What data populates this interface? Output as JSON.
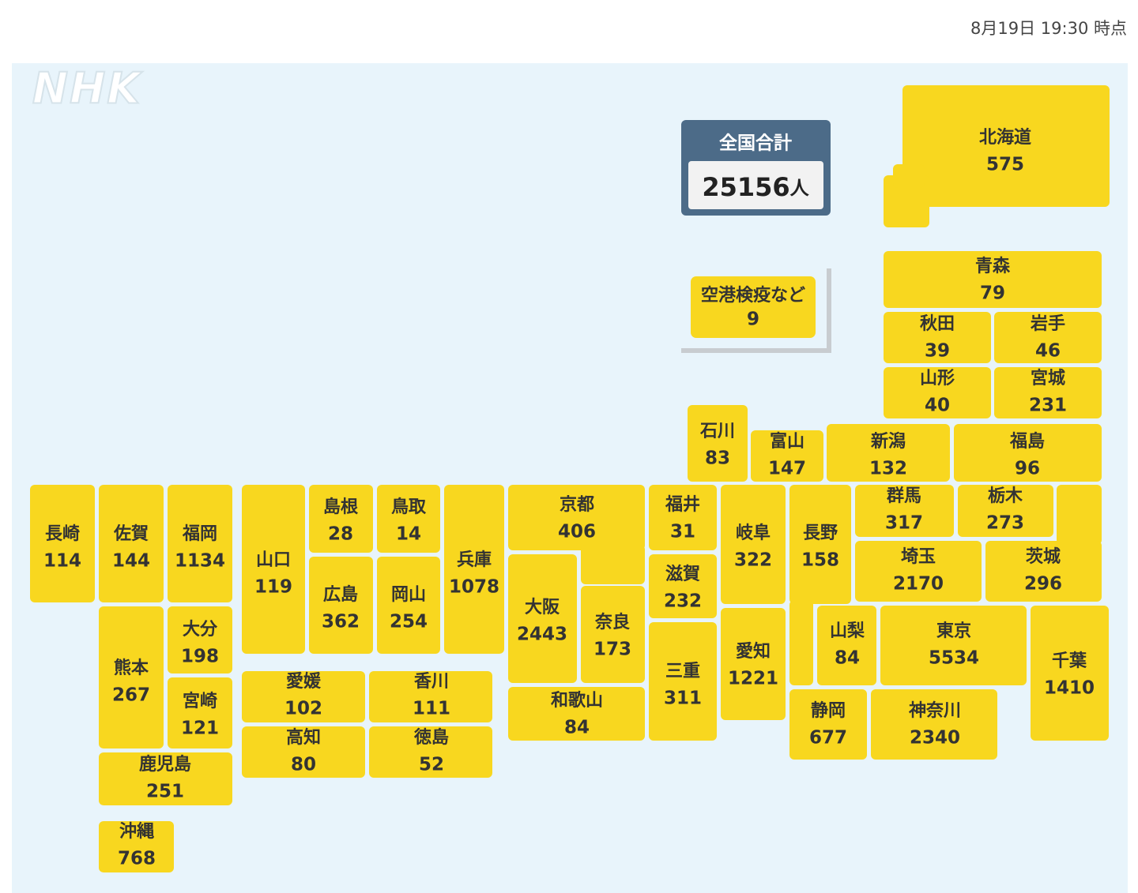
{
  "header": {
    "timestamp": "8月19日 19:30 時点"
  },
  "logo": "NHK",
  "total": {
    "label": "全国合計",
    "value": 25156,
    "unit": "人"
  },
  "airport": {
    "label": "空港検疫など",
    "value": 9
  },
  "prefectures": [
    {
      "name": "北海道",
      "value": 575
    },
    {
      "name": "青森",
      "value": 79
    },
    {
      "name": "秋田",
      "value": 39
    },
    {
      "name": "岩手",
      "value": 46
    },
    {
      "name": "山形",
      "value": 40
    },
    {
      "name": "宮城",
      "value": 231
    },
    {
      "name": "石川",
      "value": 83
    },
    {
      "name": "富山",
      "value": 147
    },
    {
      "name": "新潟",
      "value": 132
    },
    {
      "name": "福島",
      "value": 96
    },
    {
      "name": "長崎",
      "value": 114
    },
    {
      "name": "佐賀",
      "value": 144
    },
    {
      "name": "福岡",
      "value": 1134
    },
    {
      "name": "山口",
      "value": 119
    },
    {
      "name": "島根",
      "value": 28
    },
    {
      "name": "鳥取",
      "value": 14
    },
    {
      "name": "兵庫",
      "value": 1078
    },
    {
      "name": "広島",
      "value": 362
    },
    {
      "name": "岡山",
      "value": 254
    },
    {
      "name": "京都",
      "value": 406
    },
    {
      "name": "大阪",
      "value": 2443
    },
    {
      "name": "奈良",
      "value": 173
    },
    {
      "name": "和歌山",
      "value": 84
    },
    {
      "name": "福井",
      "value": 31
    },
    {
      "name": "滋賀",
      "value": 232
    },
    {
      "name": "三重",
      "value": 311
    },
    {
      "name": "岐阜",
      "value": 322
    },
    {
      "name": "愛知",
      "value": 1221
    },
    {
      "name": "長野",
      "value": 158
    },
    {
      "name": "群馬",
      "value": 317
    },
    {
      "name": "栃木",
      "value": 273
    },
    {
      "name": "茨城",
      "value": 296
    },
    {
      "name": "埼玉",
      "value": 2170
    },
    {
      "name": "山梨",
      "value": 84
    },
    {
      "name": "東京",
      "value": 5534
    },
    {
      "name": "千葉",
      "value": 1410
    },
    {
      "name": "静岡",
      "value": 677
    },
    {
      "name": "神奈川",
      "value": 2340
    },
    {
      "name": "愛媛",
      "value": 102
    },
    {
      "name": "香川",
      "value": 111
    },
    {
      "name": "高知",
      "value": 80
    },
    {
      "name": "徳島",
      "value": 52
    },
    {
      "name": "熊本",
      "value": 267
    },
    {
      "name": "大分",
      "value": 198
    },
    {
      "name": "宮崎",
      "value": 121
    },
    {
      "name": "鹿児島",
      "value": 251
    },
    {
      "name": "沖縄",
      "value": 768
    }
  ]
}
